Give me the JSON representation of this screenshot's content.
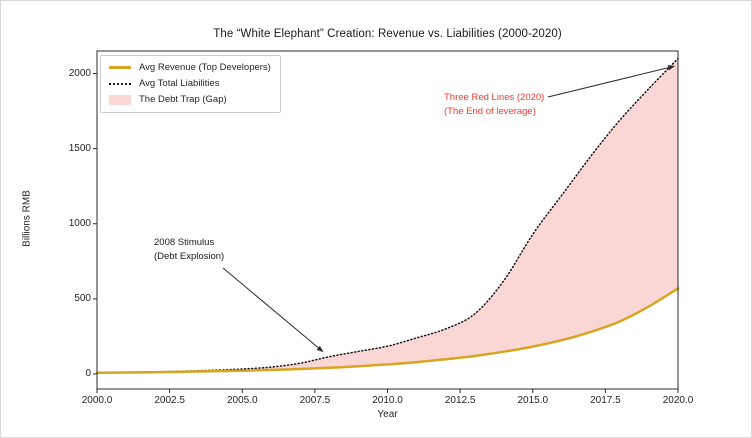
{
  "figure": {
    "title": "The “White Elephant” Creation: Revenue vs. Liabilities (2000-2020)",
    "xlabel": "Year",
    "ylabel": "Billions RMB"
  },
  "legend": {
    "position": "upper left",
    "items": [
      {
        "label": "Avg Revenue (Top Developers)",
        "swatch": "solid-line",
        "color": "#D9A521"
      },
      {
        "label": "Avg Total Liabilities",
        "swatch": "dotted-line",
        "color": "#141414"
      },
      {
        "label": "The Debt Trap (Gap)",
        "swatch": "area",
        "color": "#FAD6D4"
      }
    ]
  },
  "annotations": {
    "stimulus": {
      "line1": "2008 Stimulus",
      "line2": "(Debt Explosion)",
      "color": "#1a1a1a",
      "target": {
        "year": 2007.8,
        "value": 145
      }
    },
    "three_red_lines": {
      "line1": "Three Red Lines (2020)",
      "line2": "(The End of leverage)",
      "color": "#f03c30",
      "target": {
        "year": 2019.9,
        "value": 2050
      }
    }
  },
  "chart_data": {
    "type": "area",
    "title": "The “White Elephant” Creation: Revenue vs. Liabilities (2000-2020)",
    "xlabel": "Year",
    "ylabel": "Billions RMB",
    "x": [
      2000,
      2001,
      2002,
      2003,
      2004,
      2005,
      2006,
      2007,
      2008,
      2009,
      2010,
      2011,
      2012,
      2013,
      2014,
      2015,
      2016,
      2017,
      2018,
      2019,
      2020
    ],
    "series": [
      {
        "name": "Avg Revenue (Top Developers)",
        "style": "solid",
        "color": "#D9A521",
        "values": [
          8,
          10,
          12,
          15,
          18,
          22,
          27,
          33,
          41,
          51,
          64,
          79,
          98,
          120,
          148,
          182,
          225,
          280,
          350,
          450,
          570
        ]
      },
      {
        "name": "Avg Total Liabilities",
        "style": "dotted",
        "color": "#141414",
        "values": [
          10,
          12,
          15,
          19,
          25,
          33,
          46,
          72,
          115,
          150,
          185,
          240,
          300,
          400,
          620,
          930,
          1190,
          1450,
          1690,
          1900,
          2100
        ]
      }
    ],
    "fill_between": {
      "label": "The Debt Trap (Gap)",
      "color": "#FAD6D4"
    },
    "xlim": [
      2000,
      2020
    ],
    "ylim": [
      -100,
      2150
    ],
    "xticks": [
      2000.0,
      2002.5,
      2005.0,
      2007.5,
      2010.0,
      2012.5,
      2015.0,
      2017.5,
      2020.0
    ],
    "x_tick_labels": [
      "2000.0",
      "2002.5",
      "2005.0",
      "2007.5",
      "2010.0",
      "2012.5",
      "2015.0",
      "2017.5",
      "2020.0"
    ],
    "yticks": [
      0,
      500,
      1000,
      1500,
      2000
    ],
    "y_tick_labels": [
      "0",
      "500",
      "1000",
      "1500",
      "2000"
    ],
    "grid": false,
    "legend_position": "upper left"
  }
}
